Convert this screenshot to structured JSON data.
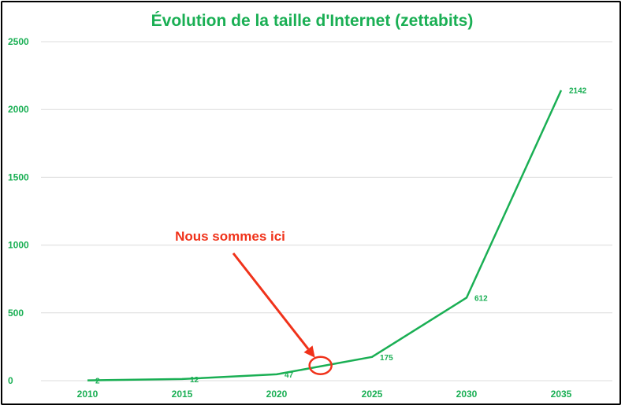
{
  "colors": {
    "series": "#1aaf54",
    "annotation": "#f0321a",
    "grid": "#dcdcdc",
    "frame": "#000000"
  },
  "chart_data": {
    "type": "line",
    "title": "Évolution de la taille d'Internet (zettabits)",
    "xlabel": "",
    "ylabel": "",
    "x": [
      2010,
      2015,
      2020,
      2025,
      2030,
      2035
    ],
    "xticks": [
      "2010",
      "2015",
      "2020",
      "2025",
      "2030",
      "2035"
    ],
    "yticks": [
      "0",
      "500",
      "1000",
      "1500",
      "2000",
      "2500"
    ],
    "ylim": [
      0,
      2500
    ],
    "grid": true,
    "legend": "none",
    "series": [
      {
        "values": [
          2,
          12,
          47,
          175,
          612,
          2142
        ],
        "labels": [
          "2",
          "12",
          "47",
          "175",
          "612",
          "2142"
        ]
      }
    ],
    "annotation": {
      "text": "Nous sommes ici",
      "x": 2022.3,
      "y": 100
    }
  }
}
